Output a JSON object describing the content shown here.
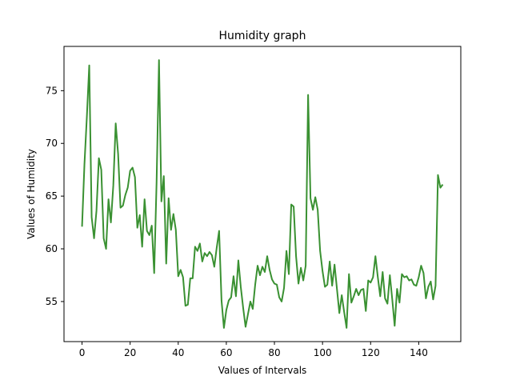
{
  "chart_data": {
    "type": "line",
    "title": "Humidity graph",
    "xlabel": "Values of Intervals",
    "ylabel": "Values of Humidity",
    "xlim": [
      -7.5,
      157.5
    ],
    "ylim": [
      51.2,
      79.2
    ],
    "xticks": [
      0,
      20,
      40,
      60,
      80,
      100,
      120,
      140
    ],
    "yticks": [
      55,
      60,
      65,
      70,
      75
    ],
    "grid": false,
    "series": [
      {
        "color": "#3a9132",
        "x": [
          0,
          1,
          2,
          3,
          4,
          5,
          6,
          7,
          8,
          9,
          10,
          11,
          12,
          13,
          14,
          15,
          16,
          17,
          18,
          19,
          20,
          21,
          22,
          23,
          24,
          25,
          26,
          27,
          28,
          29,
          30,
          31,
          32,
          33,
          34,
          35,
          36,
          37,
          38,
          39,
          40,
          41,
          42,
          43,
          44,
          45,
          46,
          47,
          48,
          49,
          50,
          51,
          52,
          53,
          54,
          55,
          56,
          57,
          58,
          59,
          60,
          61,
          62,
          63,
          64,
          65,
          66,
          67,
          68,
          69,
          70,
          71,
          72,
          73,
          74,
          75,
          76,
          77,
          78,
          79,
          80,
          81,
          82,
          83,
          84,
          85,
          86,
          87,
          88,
          89,
          90,
          91,
          92,
          93,
          94,
          95,
          96,
          97,
          98,
          99,
          100,
          101,
          102,
          103,
          104,
          105,
          106,
          107,
          108,
          109,
          110,
          111,
          112,
          113,
          114,
          115,
          116,
          117,
          118,
          119,
          120,
          121,
          122,
          123,
          124,
          125,
          126,
          127,
          128,
          129,
          130,
          131,
          132,
          133,
          134,
          135,
          136,
          137,
          138,
          139,
          140,
          141,
          142,
          143,
          144,
          145,
          146,
          147,
          148,
          149,
          150
        ],
        "y": [
          62.1,
          68.0,
          72.5,
          77.4,
          63.0,
          61.0,
          63.6,
          68.6,
          67.5,
          61.0,
          60.0,
          64.7,
          62.5,
          66.0,
          71.9,
          69.0,
          63.9,
          64.1,
          65.1,
          65.8,
          67.4,
          67.7,
          66.8,
          62.0,
          63.2,
          60.2,
          64.7,
          61.7,
          61.3,
          62.2,
          57.7,
          66.3,
          77.9,
          64.5,
          66.9,
          58.6,
          64.8,
          61.8,
          63.3,
          61.8,
          57.4,
          58.0,
          57.3,
          54.6,
          54.7,
          57.2,
          57.2,
          60.2,
          59.8,
          60.5,
          58.8,
          59.6,
          59.3,
          59.7,
          59.4,
          58.3,
          60.1,
          61.7,
          55.1,
          52.5,
          54.2,
          55.1,
          55.4,
          57.4,
          55.5,
          58.9,
          56.4,
          54.4,
          52.6,
          53.8,
          55.0,
          54.3,
          56.6,
          58.4,
          57.5,
          58.3,
          57.8,
          59.3,
          58.0,
          57.1,
          56.7,
          56.6,
          55.4,
          55.0,
          56.3,
          59.8,
          57.6,
          64.2,
          64.0,
          59.3,
          56.7,
          58.2,
          57.0,
          58.4,
          74.6,
          64.8,
          63.7,
          64.9,
          63.7,
          59.8,
          57.9,
          56.4,
          56.6,
          58.8,
          56.5,
          58.5,
          56.2,
          53.9,
          55.6,
          54.0,
          52.5,
          57.6,
          54.9,
          55.5,
          56.2,
          55.6,
          56.1,
          56.2,
          54.1,
          57.0,
          56.8,
          57.3,
          59.3,
          57.3,
          55.5,
          57.8,
          55.3,
          54.8,
          57.5,
          55.2,
          52.7,
          56.2,
          54.9,
          57.6,
          57.3,
          57.4,
          57.0,
          57.1,
          56.6,
          56.5,
          57.3,
          58.4,
          57.7,
          55.3,
          56.4,
          56.9,
          55.2,
          56.5,
          67.0,
          65.8,
          66.1
        ]
      }
    ]
  }
}
